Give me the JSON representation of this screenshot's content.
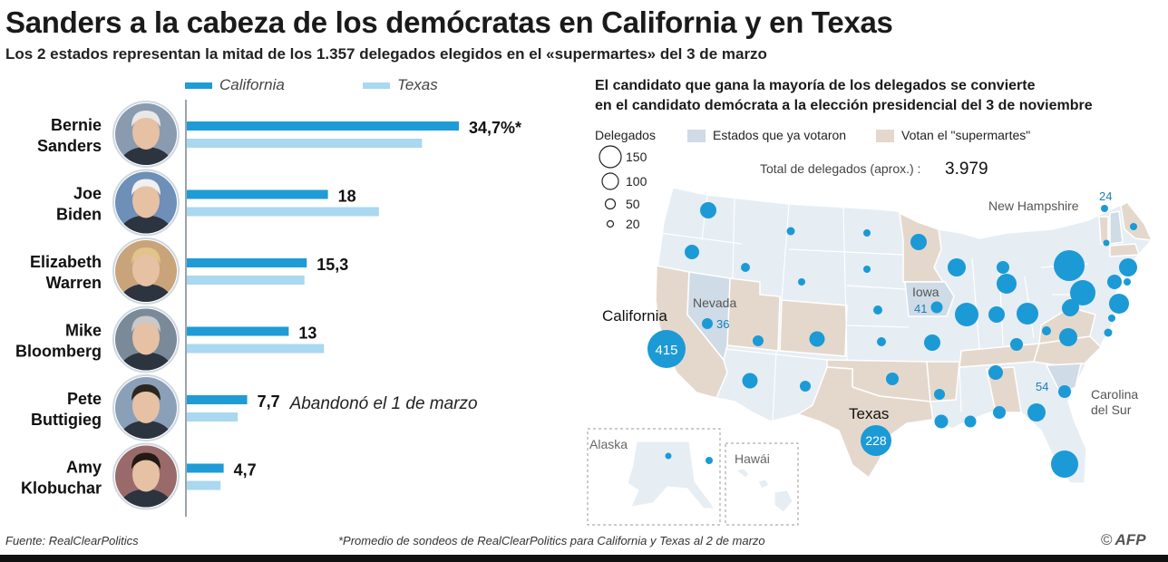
{
  "title": "Sanders a la cabeza de los demócratas en California y en Texas",
  "subtitle": "Los 2 estados representan la mitad de los 1.357 delegados elegidos en el «supermartes» del 3 de marzo",
  "colors": {
    "california": "#1f9bd6",
    "texas": "#a9d8f0",
    "voted": "#cfdbe6",
    "supermartes": "#e4d8cc",
    "others": "#e6edf3",
    "circle": "#1b9ad6"
  },
  "chart_data": {
    "type": "bar",
    "categories": [
      "Bernie Sanders",
      "Joe Biden",
      "Elizabeth Warren",
      "Mike Bloomberg",
      "Pete Buttigieg",
      "Amy Klobuchar"
    ],
    "series": [
      {
        "name": "California",
        "values": [
          34.7,
          18,
          15.3,
          13,
          7.7,
          4.7
        ]
      },
      {
        "name": "Texas",
        "values": [
          30,
          24.5,
          15,
          17.5,
          6.5,
          4.3
        ]
      }
    ],
    "value_labels": [
      "34,7%*",
      "18",
      "15,3",
      "13",
      "7,7",
      "4,7"
    ],
    "legend": [
      "California",
      "Texas"
    ],
    "xlim": [
      0,
      40
    ]
  },
  "candidates": [
    {
      "first": "Bernie",
      "last": "Sanders",
      "portrait": "bernie-sanders-portrait"
    },
    {
      "first": "Joe",
      "last": "Biden",
      "portrait": "joe-biden-portrait"
    },
    {
      "first": "Elizabeth",
      "last": "Warren",
      "portrait": "elizabeth-warren-portrait"
    },
    {
      "first": "Mike",
      "last": "Bloomberg",
      "portrait": "mike-bloomberg-portrait"
    },
    {
      "first": "Pete",
      "last": "Buttigieg",
      "portrait": "pete-buttigieg-portrait"
    },
    {
      "first": "Amy",
      "last": "Klobuchar",
      "portrait": "amy-klobuchar-portrait"
    }
  ],
  "buttigieg_note": "Abandonó el 1 de marzo",
  "map": {
    "heading_line1": "El candidato que gana la mayoría de los delegados se convierte",
    "heading_line2": "en el candidato demócrata a la elección presidencial del 3 de noviembre",
    "legend_title": "Delegados",
    "size_legend": [
      "150",
      "100",
      "50",
      "20"
    ],
    "legend_voted": "Estados que ya votaron",
    "legend_supermartes": "Votan el \"supermartes\"",
    "total_label": "Total de delegados (aprox.) :",
    "total_value": "3.979",
    "states": {
      "california": {
        "name": "California",
        "delegates": "415"
      },
      "texas": {
        "name": "Texas",
        "delegates": "228"
      },
      "nevada": {
        "name": "Nevada",
        "delegates": "36"
      },
      "iowa": {
        "name": "Iowa",
        "delegates": "41"
      },
      "new_hampshire": {
        "name": "New Hampshire",
        "delegates": "24"
      },
      "south_carolina": {
        "name": "Carolina del Sur",
        "delegates": "54"
      },
      "alaska": {
        "name": "Alaska"
      },
      "hawaii": {
        "name": "Hawái"
      }
    }
  },
  "source": "Fuente: RealClearPolitics",
  "footnote": "*Promedio de sondeos de RealClearPolitics para California y Texas al 2 de marzo",
  "credit": "AFP",
  "credit_symbol": "©"
}
